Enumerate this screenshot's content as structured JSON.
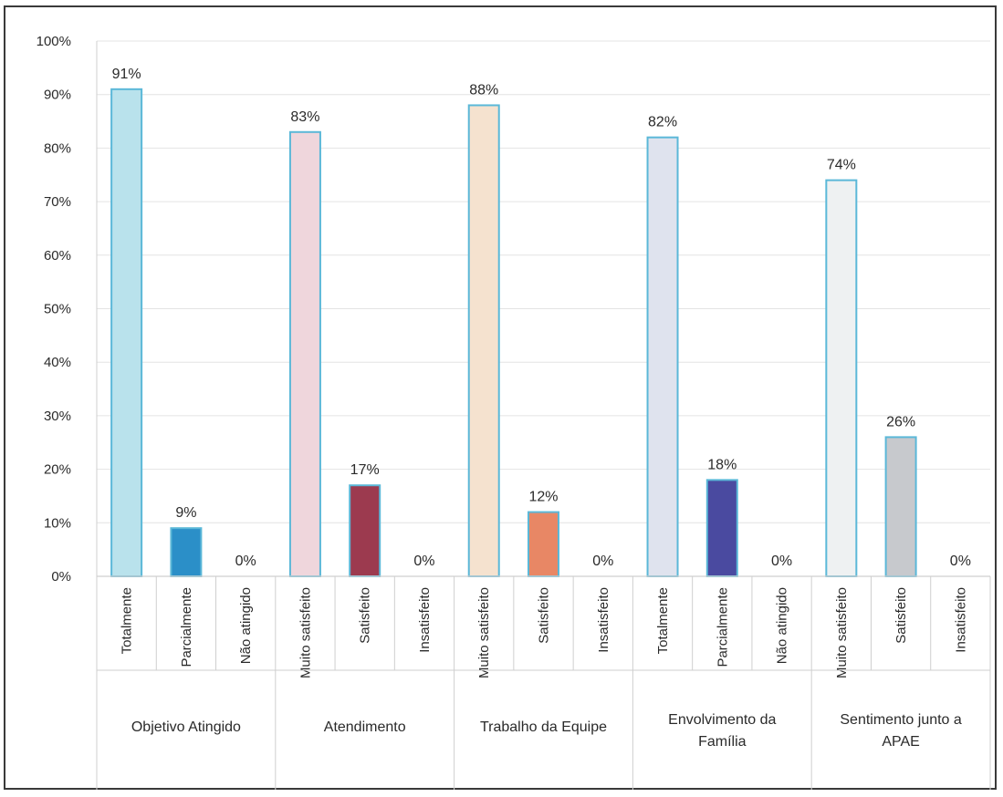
{
  "chart_data": {
    "type": "bar",
    "title": "",
    "xlabel": "",
    "ylabel": "",
    "ylim": [
      0,
      100
    ],
    "y_ticks": [
      "0%",
      "10%",
      "20%",
      "30%",
      "40%",
      "50%",
      "60%",
      "70%",
      "80%",
      "90%",
      "100%"
    ],
    "grid": true,
    "legend": "none",
    "groups": [
      {
        "label": "Objetivo Atingido",
        "bars": [
          {
            "category": "Totalmente",
            "value": 91,
            "label": "91%",
            "color": "#b9e2ec"
          },
          {
            "category": "Parcialmente",
            "value": 9,
            "label": "9%",
            "color": "#2b8fc8"
          },
          {
            "category": "Não atingido",
            "value": 0,
            "label": "0%",
            "color": "#b9e2ec"
          }
        ]
      },
      {
        "label": "Atendimento",
        "bars": [
          {
            "category": "Muito satisfeito",
            "value": 83,
            "label": "83%",
            "color": "#efd6dc"
          },
          {
            "category": "Satisfeito",
            "value": 17,
            "label": "17%",
            "color": "#9c3a4f"
          },
          {
            "category": "Insatisfeito",
            "value": 0,
            "label": "0%",
            "color": "#efd6dc"
          }
        ]
      },
      {
        "label": "Trabalho da Equipe",
        "bars": [
          {
            "category": "Muito satisfeito",
            "value": 88,
            "label": "88%",
            "color": "#f5e2cf"
          },
          {
            "category": "Satisfeito",
            "value": 12,
            "label": "12%",
            "color": "#e88765"
          },
          {
            "category": "Insatisfeito",
            "value": 0,
            "label": "0%",
            "color": "#f5e2cf"
          }
        ]
      },
      {
        "label": "Envolvimento da Família",
        "bars": [
          {
            "category": "Totalmente",
            "value": 82,
            "label": "82%",
            "color": "#dfe3ee"
          },
          {
            "category": "Parcialmente",
            "value": 18,
            "label": "18%",
            "color": "#4a4aa0"
          },
          {
            "category": "Não atingido",
            "value": 0,
            "label": "0%",
            "color": "#dfe3ee"
          }
        ]
      },
      {
        "label": "Sentimento junto a APAE",
        "bars": [
          {
            "category": "Muito satisfeito",
            "value": 74,
            "label": "74%",
            "color": "#eef1f2"
          },
          {
            "category": "Satisfeito",
            "value": 26,
            "label": "26%",
            "color": "#c7c9cd"
          },
          {
            "category": "Insatisfeito",
            "value": 0,
            "label": "0%",
            "color": "#eef1f2"
          }
        ]
      }
    ],
    "bar_outline_color": "#5bb8d8",
    "grid_color": "#e4e4e4",
    "axis_color": "#cfcfcf"
  }
}
